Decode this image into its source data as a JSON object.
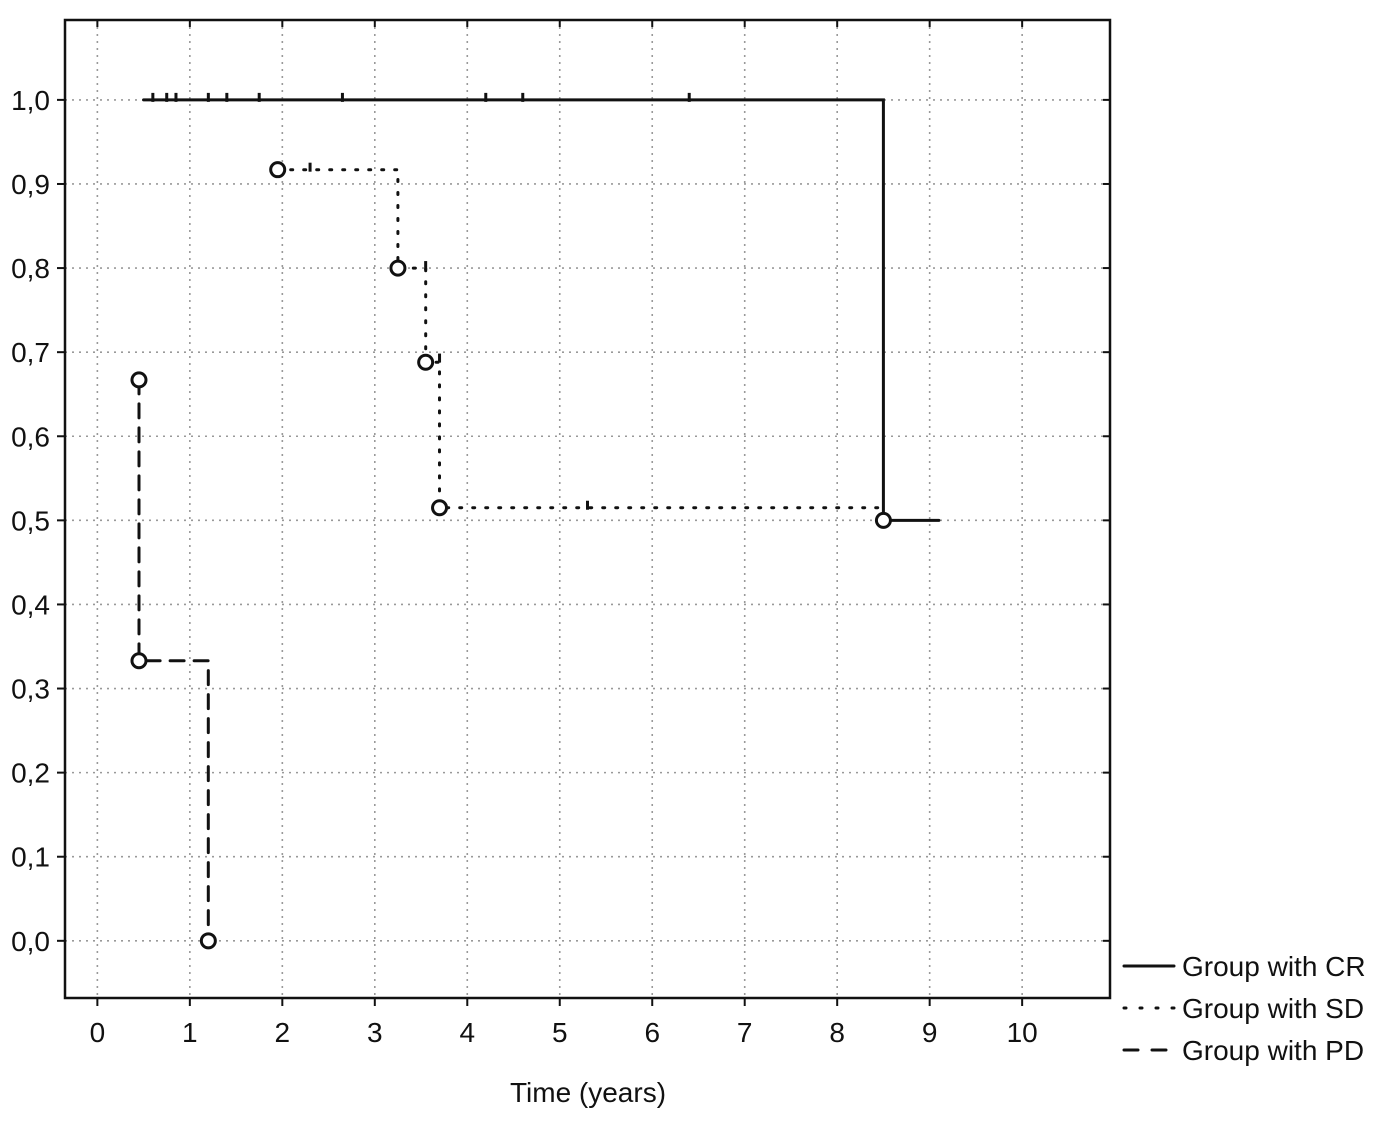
{
  "chart_data": {
    "type": "line",
    "step": true,
    "title": "",
    "xlabel": "Time (years)",
    "ylabel": "",
    "xlim": [
      -0.35,
      10.95
    ],
    "ylim": [
      -0.068,
      1.095
    ],
    "x_ticks": [
      0,
      1,
      2,
      3,
      4,
      5,
      6,
      7,
      8,
      9,
      10
    ],
    "x_tick_labels": [
      "0",
      "1",
      "2",
      "3",
      "4",
      "5",
      "6",
      "7",
      "8",
      "9",
      "10"
    ],
    "y_ticks": [
      0.0,
      0.1,
      0.2,
      0.3,
      0.4,
      0.5,
      0.6,
      0.7,
      0.8,
      0.9,
      1.0
    ],
    "y_tick_labels": [
      "0,0",
      "0,1",
      "0,2",
      "0,3",
      "0,4",
      "0,5",
      "0,6",
      "0,7",
      "0,8",
      "0,9",
      "1,0"
    ],
    "grid": true,
    "legend_position": "bottom-right outside",
    "colors": {
      "line": "#111111",
      "grid": "#999999",
      "axis": "#111111"
    },
    "series": [
      {
        "name": "Group with CR",
        "style": "solid",
        "points": [
          [
            0.5,
            1.0
          ],
          [
            8.5,
            1.0
          ],
          [
            8.5,
            0.5
          ],
          [
            9.1,
            0.5
          ]
        ],
        "censored": [
          [
            0.6,
            1.0
          ],
          [
            0.75,
            1.0
          ],
          [
            0.85,
            1.0
          ],
          [
            1.2,
            1.0
          ],
          [
            1.4,
            1.0
          ],
          [
            1.75,
            1.0
          ],
          [
            2.65,
            1.0
          ],
          [
            4.2,
            1.0
          ],
          [
            4.6,
            1.0
          ],
          [
            6.4,
            1.0
          ]
        ],
        "events": [
          [
            8.5,
            0.5
          ]
        ]
      },
      {
        "name": "Group with SD",
        "style": "dotted",
        "points": [
          [
            1.95,
            0.917
          ],
          [
            3.25,
            0.917
          ],
          [
            3.25,
            0.8
          ],
          [
            3.55,
            0.8
          ],
          [
            3.55,
            0.688
          ],
          [
            3.7,
            0.688
          ],
          [
            3.7,
            0.515
          ],
          [
            8.5,
            0.515
          ]
        ],
        "censored": [
          [
            2.3,
            0.917
          ],
          [
            3.55,
            0.8
          ],
          [
            3.7,
            0.69
          ],
          [
            5.3,
            0.515
          ]
        ],
        "events": [
          [
            1.95,
            0.917
          ],
          [
            3.25,
            0.8
          ],
          [
            3.55,
            0.688
          ],
          [
            3.7,
            0.515
          ]
        ]
      },
      {
        "name": "Group with PD",
        "style": "dashed",
        "points": [
          [
            0.45,
            0.667
          ],
          [
            0.45,
            0.333
          ],
          [
            1.2,
            0.333
          ],
          [
            1.2,
            0.0
          ]
        ],
        "censored": [],
        "events": [
          [
            0.45,
            0.667
          ],
          [
            0.45,
            0.333
          ],
          [
            1.2,
            0.0
          ]
        ]
      }
    ]
  }
}
